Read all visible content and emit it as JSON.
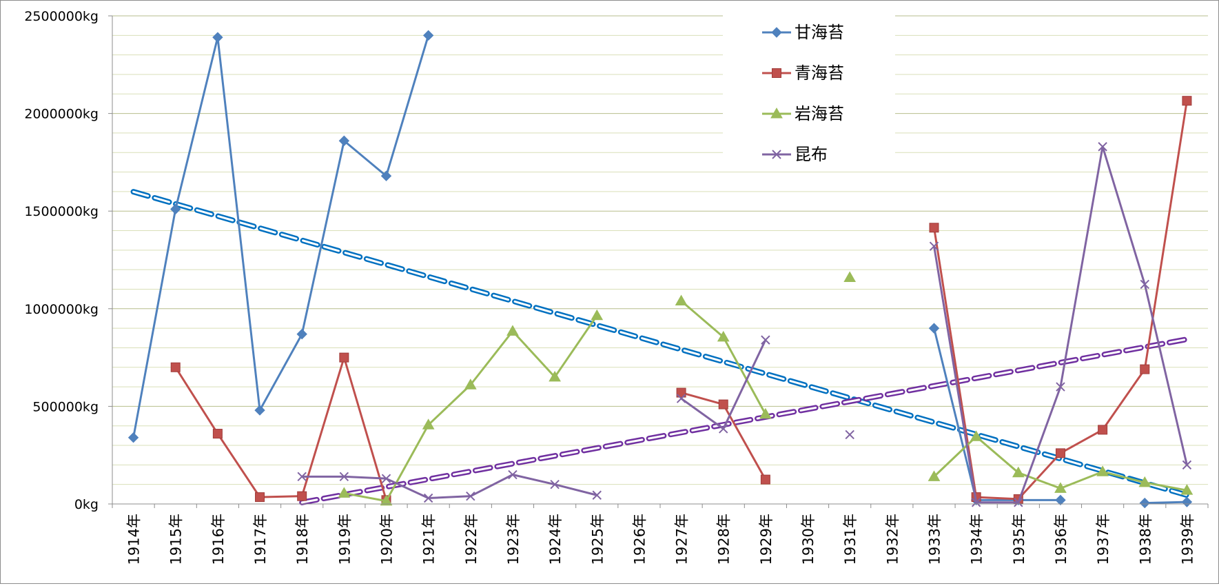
{
  "chart_data": {
    "type": "line",
    "title": "",
    "xlabel": "",
    "ylabel": "",
    "x": [
      "1914年",
      "1915年",
      "1916年",
      "1917年",
      "1918年",
      "1919年",
      "1920年",
      "1921年",
      "1922年",
      "1923年",
      "1924年",
      "1925年",
      "1926年",
      "1927年",
      "1928年",
      "1929年",
      "1930年",
      "1931年",
      "1932年",
      "1933年",
      "1934年",
      "1935年",
      "1936年",
      "1937年",
      "1938年",
      "1939年"
    ],
    "y_ticks": [
      "0kg",
      "500000kg",
      "1000000kg",
      "1500000kg",
      "2000000kg",
      "2500000kg"
    ],
    "ylim": [
      0,
      2500000
    ],
    "grid": true,
    "legend_position": "top-right",
    "series": [
      {
        "name": "甘海苔",
        "color": "#4f81bd",
        "marker": "diamond",
        "values": [
          340000,
          1510000,
          2390000,
          480000,
          870000,
          1860000,
          1680000,
          2400000,
          null,
          null,
          null,
          null,
          null,
          null,
          null,
          null,
          null,
          null,
          null,
          900000,
          20000,
          20000,
          20000,
          null,
          5000,
          10000
        ]
      },
      {
        "name": "青海苔",
        "color": "#c0504d",
        "marker": "square",
        "values": [
          null,
          700000,
          360000,
          35000,
          40000,
          750000,
          20000,
          null,
          null,
          null,
          null,
          null,
          null,
          570000,
          510000,
          125000,
          null,
          null,
          null,
          1415000,
          35000,
          25000,
          260000,
          380000,
          690000,
          2065000
        ]
      },
      {
        "name": "岩海苔",
        "color": "#9bbb59",
        "marker": "triangle",
        "values": [
          null,
          null,
          null,
          null,
          null,
          55000,
          15000,
          405000,
          610000,
          885000,
          650000,
          965000,
          null,
          1040000,
          855000,
          460000,
          null,
          1160000,
          null,
          140000,
          345000,
          160000,
          80000,
          165000,
          110000,
          70000
        ]
      },
      {
        "name": "昆布",
        "color": "#8064a2",
        "marker": "x",
        "values": [
          null,
          null,
          null,
          null,
          140000,
          140000,
          130000,
          30000,
          40000,
          150000,
          100000,
          45000,
          null,
          540000,
          385000,
          840000,
          null,
          355000,
          null,
          1320000,
          8000,
          8000,
          600000,
          1830000,
          1125000,
          200000
        ]
      }
    ],
    "trendlines": [
      {
        "series": "甘海苔",
        "color": "#0070c0",
        "style": "dashed"
      },
      {
        "series": "昆布",
        "color": "#7030a0",
        "style": "dashed"
      }
    ]
  }
}
